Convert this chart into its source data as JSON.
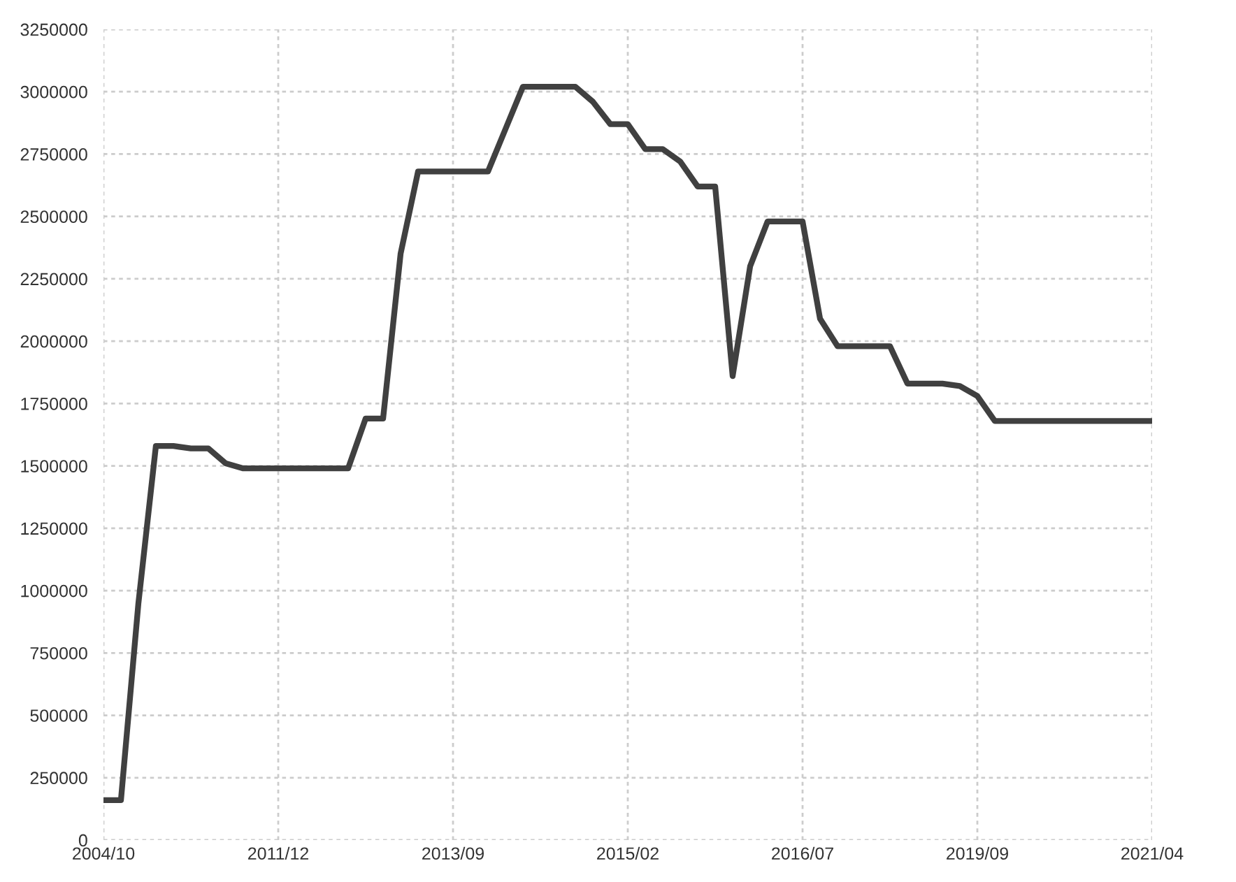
{
  "chart_data": {
    "type": "line",
    "categories": [
      "2004/10",
      null,
      null,
      null,
      null,
      null,
      null,
      null,
      null,
      null,
      "2011/12",
      null,
      null,
      null,
      null,
      null,
      null,
      null,
      null,
      null,
      "2013/09",
      null,
      null,
      null,
      null,
      null,
      null,
      null,
      null,
      null,
      "2015/02",
      null,
      null,
      null,
      null,
      null,
      null,
      null,
      null,
      null,
      "2016/07",
      null,
      null,
      null,
      null,
      null,
      null,
      null,
      null,
      null,
      "2019/09",
      null,
      null,
      null,
      null,
      null,
      null,
      null,
      null,
      null,
      "2021/04"
    ],
    "series": [
      {
        "color": "#404040",
        "values": [
          160000,
          160000,
          950000,
          1580000,
          1580000,
          1570000,
          1570000,
          1510000,
          1490000,
          1490000,
          1490000,
          1490000,
          1490000,
          1490000,
          1490000,
          1690000,
          1690000,
          2350000,
          2680000,
          2680000,
          2680000,
          2680000,
          2680000,
          2850000,
          3020000,
          3020000,
          3020000,
          3020000,
          2960000,
          2870000,
          2870000,
          2770000,
          2770000,
          2720000,
          2620000,
          2620000,
          1860000,
          2300000,
          2480000,
          2480000,
          2480000,
          2090000,
          1980000,
          1980000,
          1980000,
          1980000,
          1830000,
          1830000,
          1830000,
          1820000,
          1780000,
          1680000,
          1680000,
          1680000,
          1680000,
          1680000,
          1680000,
          1680000,
          1680000,
          1680000,
          1680000
        ]
      }
    ],
    "ylim": [
      0,
      3250000
    ],
    "yticks": [
      0,
      250000,
      500000,
      750000,
      1000000,
      1250000,
      1500000,
      1750000,
      2000000,
      2250000,
      2500000,
      2750000,
      3000000,
      3250000
    ],
    "grid": true,
    "legend": false,
    "marker": "none",
    "line_style": "solid"
  }
}
